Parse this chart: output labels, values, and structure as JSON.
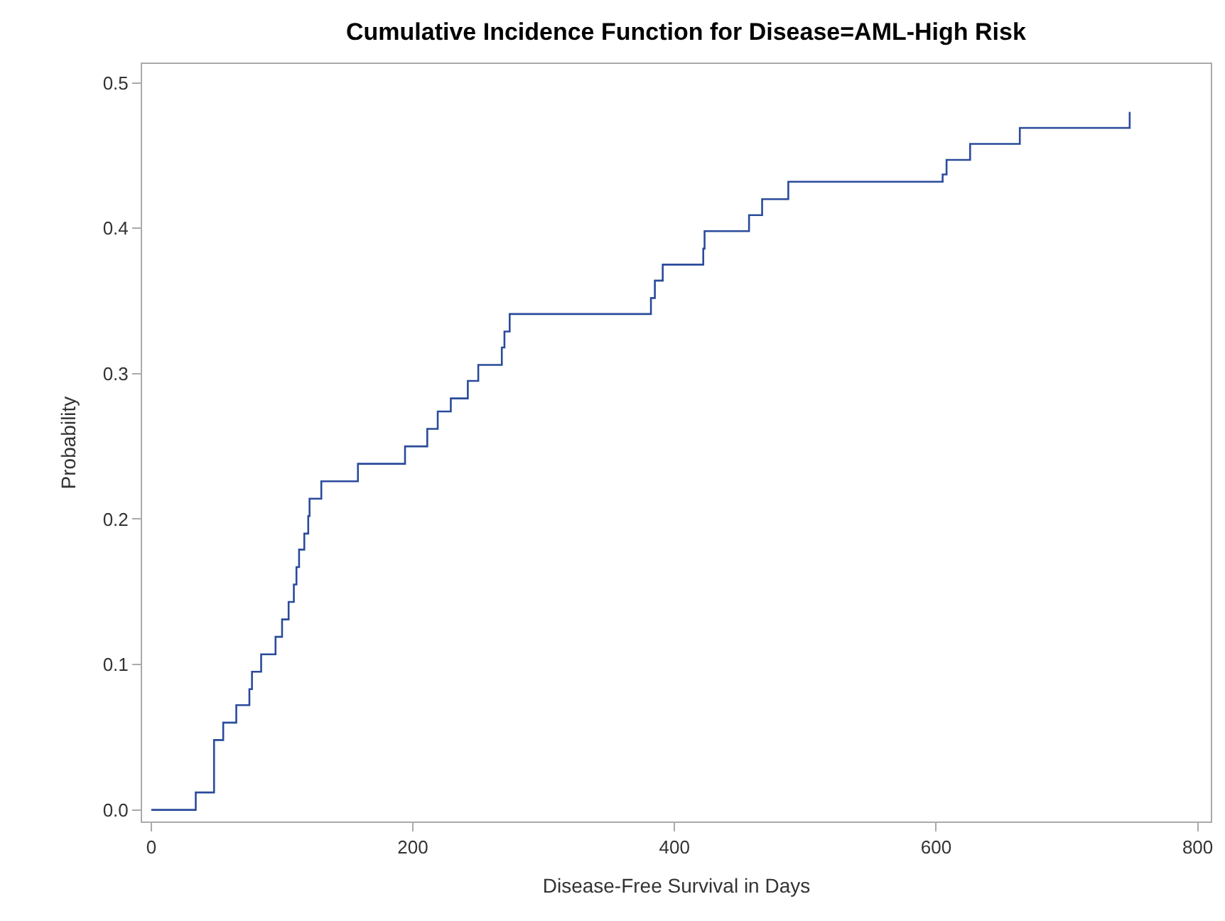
{
  "chart_data": {
    "type": "step",
    "title": "Cumulative Incidence Function for Disease=AML-High Risk",
    "xlabel": "Disease-Free Survival in Days",
    "ylabel": "Probability",
    "x": [
      0,
      34,
      48,
      48,
      55,
      65,
      75,
      77,
      84,
      95,
      100,
      105,
      109,
      111,
      113,
      117,
      120,
      121,
      130,
      158,
      194,
      211,
      219,
      229,
      242,
      250,
      268,
      270,
      274,
      382,
      385,
      391,
      422,
      423,
      457,
      467,
      487,
      605,
      608,
      626,
      664,
      748,
      748
    ],
    "series": [
      {
        "color": "#2a4b9b",
        "values": [
          0,
          0.012,
          0.036,
          0.048,
          0.06,
          0.072,
          0.083,
          0.095,
          0.107,
          0.119,
          0.131,
          0.143,
          0.155,
          0.167,
          0.179,
          0.19,
          0.202,
          0.214,
          0.226,
          0.238,
          0.25,
          0.262,
          0.274,
          0.283,
          0.295,
          0.306,
          0.318,
          0.329,
          0.341,
          0.352,
          0.364,
          0.375,
          0.386,
          0.398,
          0.409,
          0.42,
          0.432,
          0.437,
          0.447,
          0.458,
          0.469,
          0.469,
          0.48
        ]
      }
    ],
    "xlim": [
      -7,
      810
    ],
    "xticks": [
      0,
      200,
      400,
      600,
      800
    ],
    "ylim": [
      -0.008,
      0.513
    ],
    "yticks": [
      {
        "value": 0,
        "label": "0.0"
      },
      0.1,
      0.2,
      0.3,
      0.4,
      0.5
    ],
    "marker": "none",
    "line_style": "solid"
  }
}
